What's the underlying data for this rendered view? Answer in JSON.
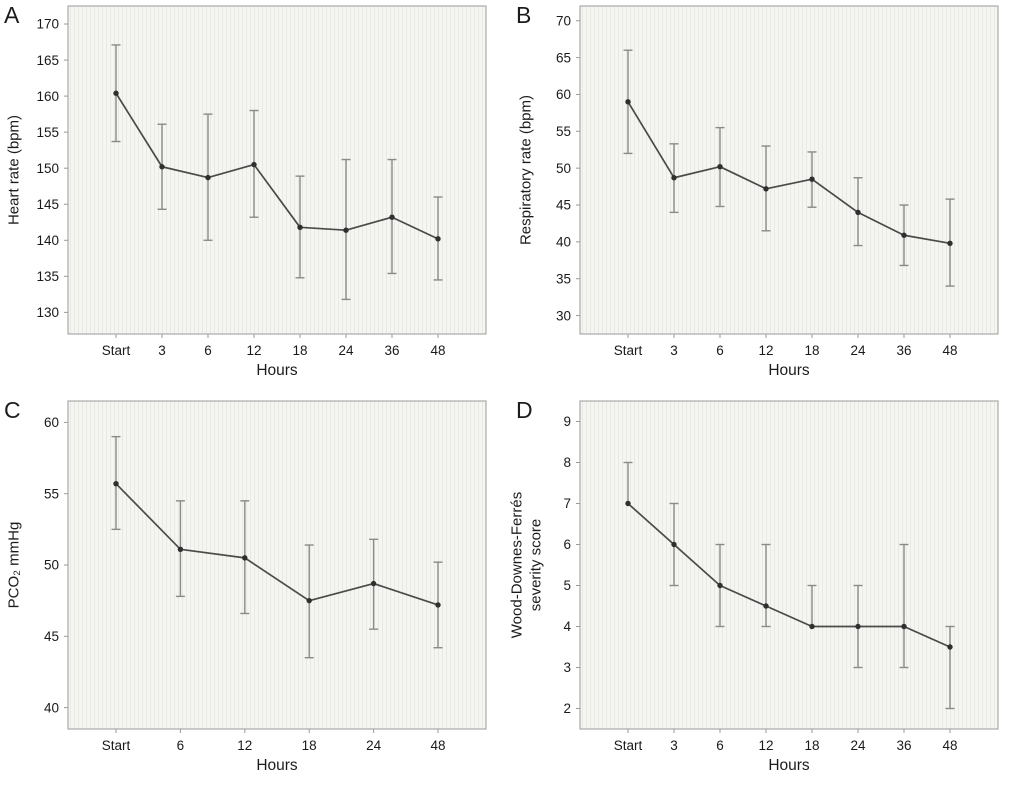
{
  "colors": {
    "plot_bg": "#f5f5f2",
    "plot_stripe": "#e8e8e4",
    "plot_border": "#9a9a9a",
    "line": "#4a4a4a",
    "marker": "#2f2f2f",
    "error_bar": "#8a8a8a",
    "tick_text": "#1a1a1a"
  },
  "chart_data": [
    {
      "type": "line",
      "panel_label": "A",
      "ylabel": "Heart rate (bpm)",
      "xlabel": "Hours",
      "categories": [
        "Start",
        "3",
        "6",
        "12",
        "18",
        "24",
        "36",
        "48"
      ],
      "values": [
        160.4,
        150.2,
        148.7,
        150.5,
        141.8,
        141.4,
        143.2,
        140.2
      ],
      "err_low": [
        153.7,
        144.3,
        140.0,
        143.2,
        134.8,
        131.8,
        135.4,
        134.5
      ],
      "err_high": [
        167.1,
        156.1,
        157.5,
        158.0,
        148.9,
        151.2,
        151.2,
        146.0
      ],
      "yticks": [
        130,
        135,
        140,
        145,
        150,
        155,
        160,
        165,
        170
      ],
      "ylim": [
        127,
        172.5
      ],
      "grid": false,
      "legend": "none"
    },
    {
      "type": "line",
      "panel_label": "B",
      "ylabel": "Respiratory rate (bpm)",
      "xlabel": "Hours",
      "categories": [
        "Start",
        "3",
        "6",
        "12",
        "18",
        "24",
        "36",
        "48"
      ],
      "values": [
        59.0,
        48.7,
        50.2,
        47.2,
        48.5,
        44.0,
        40.9,
        39.8
      ],
      "err_low": [
        52.0,
        44.0,
        44.8,
        41.5,
        44.7,
        39.5,
        36.8,
        34.0
      ],
      "err_high": [
        66.0,
        53.3,
        55.5,
        53.0,
        52.2,
        48.7,
        45.0,
        45.8
      ],
      "yticks": [
        30,
        35,
        40,
        45,
        50,
        55,
        60,
        65,
        70
      ],
      "ylim": [
        27.5,
        72
      ],
      "grid": false,
      "legend": "none"
    },
    {
      "type": "line",
      "panel_label": "C",
      "ylabel": "PCO₂ mmHg",
      "xlabel": "Hours",
      "categories": [
        "Start",
        "6",
        "12",
        "18",
        "24",
        "48"
      ],
      "values": [
        55.7,
        51.1,
        50.5,
        47.5,
        48.7,
        47.2
      ],
      "err_low": [
        52.5,
        47.8,
        46.6,
        43.5,
        45.5,
        44.2
      ],
      "err_high": [
        59.0,
        54.5,
        54.5,
        51.4,
        51.8,
        50.2
      ],
      "yticks": [
        40,
        45,
        50,
        55,
        60
      ],
      "ylim": [
        38.5,
        61.5
      ],
      "grid": false,
      "legend": "none"
    },
    {
      "type": "line",
      "panel_label": "D",
      "ylabel": "Wood-Downes-Ferrés\nseverity score",
      "xlabel": "Hours",
      "categories": [
        "Start",
        "3",
        "6",
        "12",
        "18",
        "24",
        "36",
        "48"
      ],
      "values": [
        7.0,
        6.0,
        5.0,
        4.5,
        4.0,
        4.0,
        4.0,
        3.5
      ],
      "err_low": [
        7.0,
        5.0,
        4.0,
        4.0,
        4.0,
        3.0,
        3.0,
        2.0
      ],
      "err_high": [
        8.0,
        7.0,
        6.0,
        6.0,
        5.0,
        5.0,
        6.0,
        4.0
      ],
      "yticks": [
        2,
        3,
        4,
        5,
        6,
        7,
        8,
        9
      ],
      "ylim": [
        1.5,
        9.5
      ],
      "grid": false,
      "legend": "none"
    }
  ]
}
